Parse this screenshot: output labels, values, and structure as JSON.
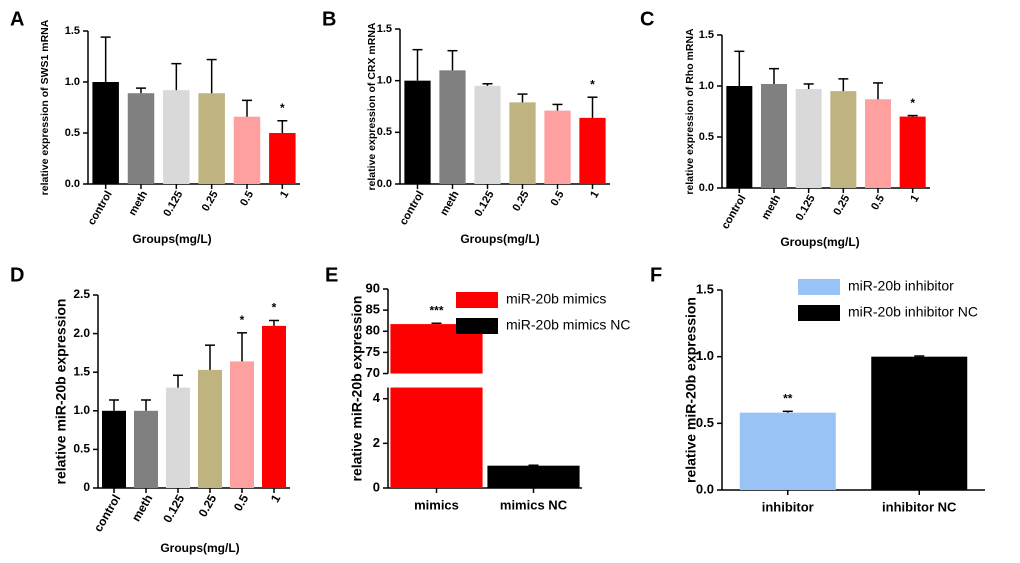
{
  "chart_data": [
    {
      "type": "bar",
      "panel": "A",
      "y_label": "relative expression of SWS1 mRNA",
      "x_label": "Groups(mg/L)",
      "categories": [
        "control",
        "meth",
        "0.125",
        "0.25",
        "0.5",
        "1"
      ],
      "values": [
        1.0,
        0.89,
        0.92,
        0.89,
        0.66,
        0.5
      ],
      "errors": [
        0.44,
        0.05,
        0.26,
        0.33,
        0.16,
        0.12
      ],
      "colors": [
        "#000000",
        "#808080",
        "#d9d9d9",
        "#bfb37f",
        "#ffa0a0",
        "#ff0000"
      ],
      "ylim": [
        0,
        1.5
      ],
      "yticks": [
        {
          "value": 0,
          "label": "0.0"
        },
        0.5,
        {
          "value": 1,
          "label": "1.0"
        },
        1.5
      ],
      "annotations": [
        {
          "index": 5,
          "text": "*"
        }
      ]
    },
    {
      "type": "bar",
      "panel": "B",
      "y_label": "relative expression of CRX mRNA",
      "x_label": "Groups(mg/L)",
      "categories": [
        "control",
        "meth",
        "0.125",
        "0.25",
        "0.5",
        "1"
      ],
      "values": [
        1.0,
        1.1,
        0.95,
        0.79,
        0.71,
        0.64
      ],
      "errors": [
        0.3,
        0.19,
        0.02,
        0.08,
        0.06,
        0.2
      ],
      "colors": [
        "#000000",
        "#808080",
        "#d9d9d9",
        "#bfb37f",
        "#ffa0a0",
        "#ff0000"
      ],
      "ylim": [
        0,
        1.5
      ],
      "yticks": [
        {
          "value": 0,
          "label": "0.0"
        },
        0.5,
        {
          "value": 1,
          "label": "1.0"
        },
        1.5
      ],
      "annotations": [
        {
          "index": 5,
          "text": "*"
        }
      ]
    },
    {
      "type": "bar",
      "panel": "C",
      "y_label": "relative expression of Rho mRNA",
      "x_label": "Groups(mg/L)",
      "categories": [
        "control",
        "meth",
        "0.125",
        "0.25",
        "0.5",
        "1"
      ],
      "values": [
        1.0,
        1.02,
        0.97,
        0.95,
        0.87,
        0.7
      ],
      "errors": [
        0.34,
        0.15,
        0.05,
        0.12,
        0.16,
        0.01
      ],
      "colors": [
        "#000000",
        "#808080",
        "#d9d9d9",
        "#bfb37f",
        "#ffa0a0",
        "#ff0000"
      ],
      "ylim": [
        0,
        1.5
      ],
      "yticks": [
        {
          "value": 0,
          "label": "0.0"
        },
        0.5,
        {
          "value": 1,
          "label": "1.0"
        },
        1.5
      ],
      "annotations": [
        {
          "index": 5,
          "text": "*"
        }
      ]
    },
    {
      "type": "bar",
      "panel": "D",
      "y_label": "relative miR-20b expression",
      "x_label": "Groups(mg/L)",
      "categories": [
        "control",
        "meth",
        "0.125",
        "0.25",
        "0.5",
        "1"
      ],
      "values": [
        1.0,
        1.0,
        1.3,
        1.53,
        1.64,
        2.1
      ],
      "errors": [
        0.14,
        0.14,
        0.16,
        0.32,
        0.37,
        0.07
      ],
      "colors": [
        "#000000",
        "#808080",
        "#d9d9d9",
        "#bfb37f",
        "#ffa0a0",
        "#ff0000"
      ],
      "ylim": [
        0,
        2.5
      ],
      "yticks": [
        0,
        0.5,
        {
          "value": 1,
          "label": "1.0"
        },
        1.5,
        {
          "value": 2,
          "label": "2.0"
        },
        2.5
      ],
      "annotations": [
        {
          "index": 4,
          "text": "*"
        },
        {
          "index": 5,
          "text": "*"
        }
      ]
    },
    {
      "type": "bar",
      "panel": "E",
      "y_label": "relative miR-20b expression",
      "categories": [
        "mimics",
        "mimics NC"
      ],
      "values": [
        81.7,
        1.0
      ],
      "errors": [
        0.2,
        0.02
      ],
      "colors": [
        "#ff0000",
        "#000000"
      ],
      "legend": [
        "miR-20b mimics",
        "miR-20b mimics NC"
      ],
      "ylim": [
        0,
        90
      ],
      "y_break": [
        4.5,
        70
      ],
      "yticks": [
        0,
        2,
        4,
        70,
        75,
        80,
        85,
        90
      ],
      "annotations": [
        {
          "index": 0,
          "text": "***"
        }
      ]
    },
    {
      "type": "bar",
      "panel": "F",
      "y_label": "relative miR-20b expression",
      "categories": [
        "inhibitor",
        "inhibitor NC"
      ],
      "values": [
        0.58,
        1.0
      ],
      "errors": [
        0.01,
        0.005
      ],
      "colors": [
        "#99c2f5",
        "#000000"
      ],
      "legend": [
        "miR-20b inhibitor",
        "miR-20b inhibitor NC"
      ],
      "ylim": [
        0,
        1.5
      ],
      "yticks": [
        {
          "value": 0,
          "label": "0.0"
        },
        0.5,
        {
          "value": 1,
          "label": "1.0"
        },
        1.5
      ],
      "annotations": [
        {
          "index": 0,
          "text": "**"
        }
      ]
    }
  ]
}
